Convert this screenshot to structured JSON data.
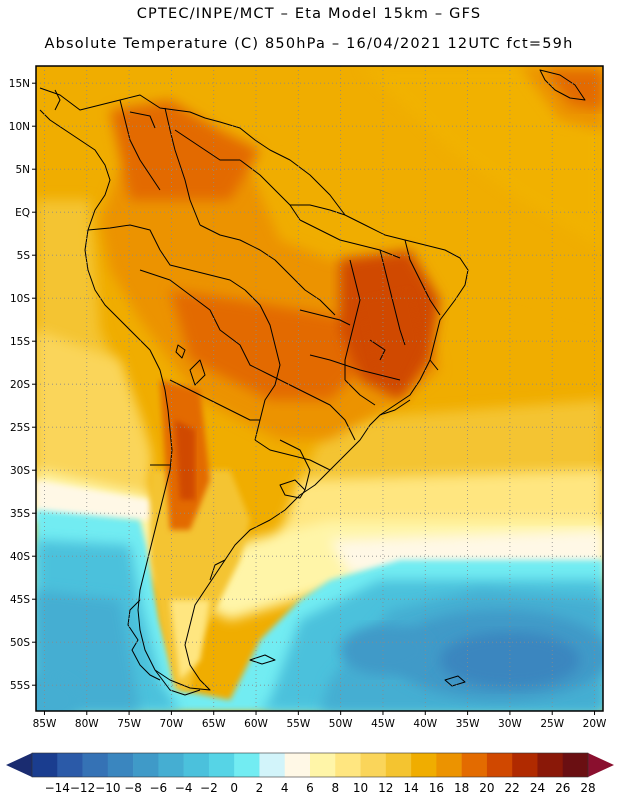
{
  "header": {
    "line1": "CPTEC/INPE/MCT –  Eta Model 15km – GFS",
    "line2": "Absolute Temperature (C) 850hPa – 16/04/2021 12UTC fct=59h"
  },
  "map": {
    "lon_range": [
      -86,
      -19
    ],
    "lat_range": [
      -58,
      17
    ],
    "lat_labels": [
      "15N",
      "10N",
      "5N",
      "EQ",
      "5S",
      "10S",
      "15S",
      "20S",
      "25S",
      "30S",
      "35S",
      "40S",
      "45S",
      "50S",
      "55S"
    ],
    "lon_labels": [
      "85W",
      "80W",
      "75W",
      "70W",
      "65W",
      "60W",
      "55W",
      "50W",
      "45W",
      "40W",
      "35W",
      "30W",
      "25W",
      "20W"
    ],
    "grid": "dotted"
  },
  "colorbar": {
    "labels": [
      "-14",
      "-12",
      "-10",
      "-8",
      "-6",
      "-4",
      "-2",
      "0",
      "2",
      "4",
      "6",
      "8",
      "10",
      "12",
      "14",
      "16",
      "18",
      "20",
      "22",
      "24",
      "26",
      "28"
    ],
    "colors": [
      "#1a3d8f",
      "#2b5aa8",
      "#3572b5",
      "#3a86bf",
      "#3f9ac8",
      "#45aed2",
      "#4bc1dc",
      "#56d4e6",
      "#72ecf2",
      "#d2f4fa",
      "#fff8e6",
      "#fff5a8",
      "#ffe680",
      "#fad55a",
      "#f4c430",
      "#f0ad00",
      "#ec9300",
      "#e36b00",
      "#d04800",
      "#b02a00",
      "#8a1808",
      "#6a0f12"
    ],
    "left_arrow_color": "#1a2c70",
    "right_arrow_color": "#8a0f2e"
  }
}
